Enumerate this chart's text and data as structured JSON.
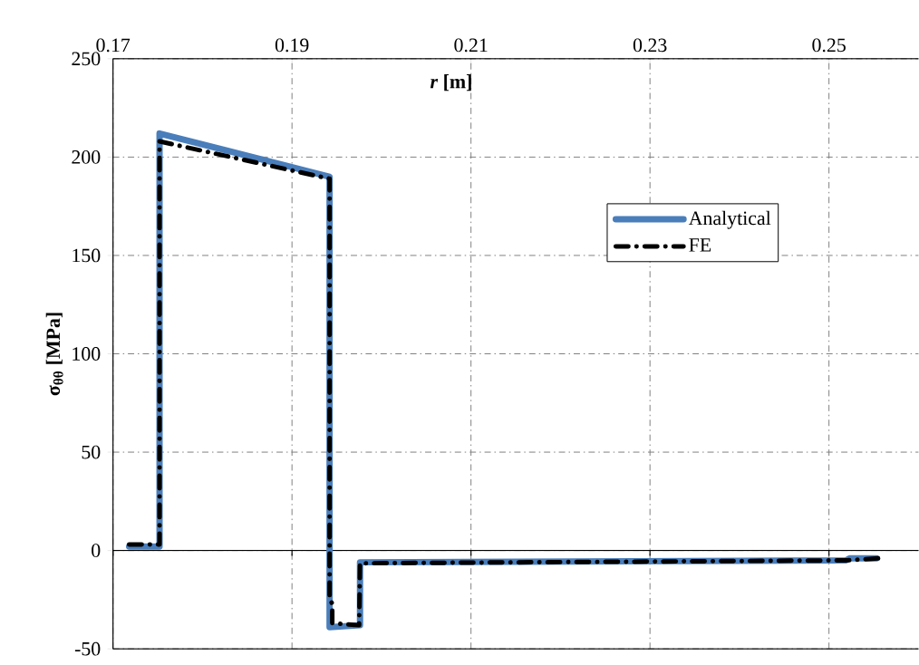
{
  "chart_data": {
    "type": "line",
    "xlabel": "*r* [m]",
    "ylabel": "σ$_{θθ}$ [MPa]",
    "xlim": [
      0.17,
      0.26
    ],
    "ylim": [
      -50,
      250
    ],
    "xticks": [
      0.17,
      0.19,
      0.21,
      0.23,
      0.25
    ],
    "yticks": [
      -50,
      0,
      50,
      100,
      150,
      200,
      250
    ],
    "grid": true,
    "legend": "top right",
    "ref_lines": [
      {
        "axis": "y",
        "value": 0,
        "color": "#000000",
        "line_style": "solid"
      }
    ],
    "series": [
      {
        "name": "Analytical",
        "color": "#4a7ebb",
        "line_style": "solid",
        "x": [
          0.1718,
          0.1752,
          0.1752,
          0.1942,
          0.1942,
          0.1976,
          0.1976,
          0.2519,
          0.2523,
          0.2553
        ],
        "values": [
          2,
          2,
          212,
          190,
          -39,
          -38,
          -6,
          -5,
          -4,
          -4
        ]
      },
      {
        "name": "FE",
        "color": "#000000",
        "line_style": "dashed",
        "x": [
          0.1718,
          0.1752,
          0.1752,
          0.1942,
          0.1942,
          0.1945,
          0.1945,
          0.1975,
          0.1976,
          0.252,
          0.2555
        ],
        "values": [
          3,
          3,
          208,
          189,
          -25,
          -27,
          -37,
          -38,
          -6.5,
          -5,
          -4
        ]
      }
    ]
  }
}
